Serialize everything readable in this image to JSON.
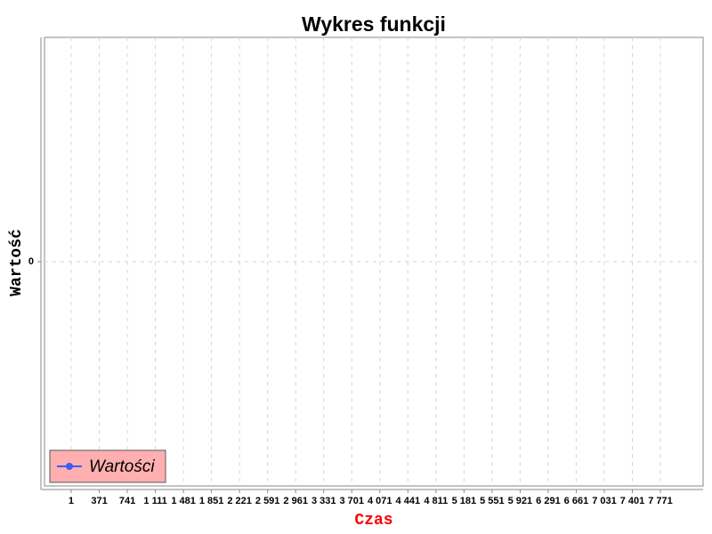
{
  "chart_data": {
    "type": "line",
    "title": "Wykres funkcji",
    "x_label": "Czas",
    "y_label": "Wartość",
    "x": [],
    "series": [
      {
        "name": "Wartości",
        "color": "#3b5bff",
        "values": []
      }
    ],
    "xlim": [
      -351,
      8334
    ],
    "xticks": [
      1,
      371,
      741,
      {
        "value": 1111,
        "label": "1 111"
      },
      {
        "value": 1481,
        "label": "1 481"
      },
      {
        "value": 1851,
        "label": "1 851"
      },
      {
        "value": 2221,
        "label": "2 221"
      },
      {
        "value": 2591,
        "label": "2 591"
      },
      {
        "value": 2961,
        "label": "2 961"
      },
      {
        "value": 3331,
        "label": "3 331"
      },
      {
        "value": 3701,
        "label": "3 701"
      },
      {
        "value": 4071,
        "label": "4 071"
      },
      {
        "value": 4441,
        "label": "4 441"
      },
      {
        "value": 4811,
        "label": "4 811"
      },
      {
        "value": 5181,
        "label": "5 181"
      },
      {
        "value": 5551,
        "label": "5 551"
      },
      {
        "value": 5921,
        "label": "5 921"
      },
      {
        "value": 6291,
        "label": "6 291"
      },
      {
        "value": 6661,
        "label": "6 661"
      },
      {
        "value": 7031,
        "label": "7 031"
      },
      {
        "value": 7401,
        "label": "7 401"
      },
      {
        "value": 7771,
        "label": "7 771"
      }
    ],
    "ylim": [
      -1,
      1
    ],
    "yticks": [
      0
    ],
    "grid": true,
    "legend_position": "lower-left"
  }
}
